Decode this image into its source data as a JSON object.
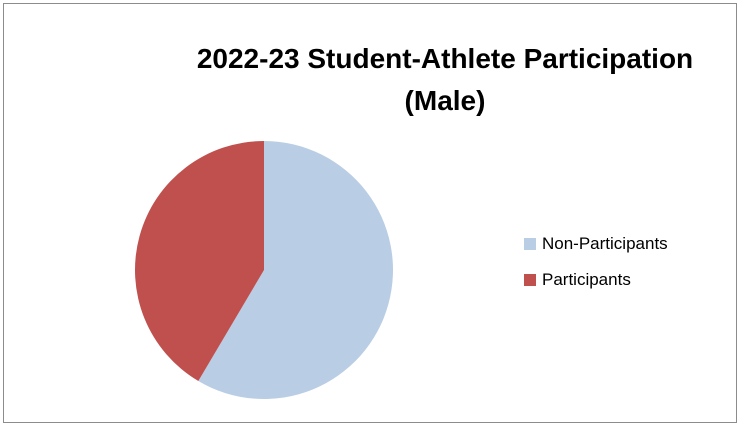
{
  "chart_data": {
    "type": "pie",
    "title_lines": [
      "2022-23 Student-Athlete Participation",
      "(Male)"
    ],
    "slices": [
      {
        "name": "Non-Participants",
        "value": 58.5,
        "color": "#b9cde5"
      },
      {
        "name": "Participants",
        "value": 41.5,
        "color": "#c0504d"
      }
    ],
    "start_angle": "top",
    "direction": "clockwise",
    "legend": {
      "placement": "right"
    }
  }
}
